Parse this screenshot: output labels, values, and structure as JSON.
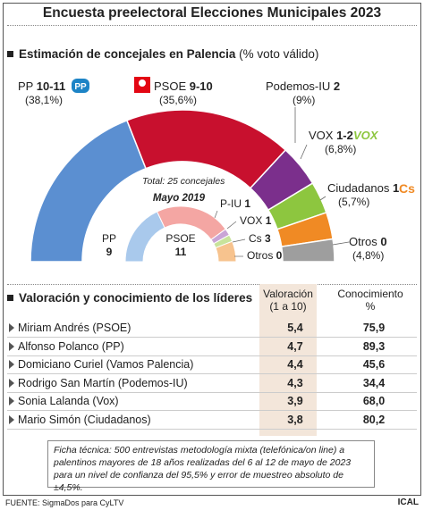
{
  "title": "Encuesta preelectoral Elecciones Municipales 2023",
  "section1": {
    "title": "Estimación de concejales en Palencia",
    "subtitle": "(% voto válido)"
  },
  "chart_data": {
    "type": "semicircle-parliament",
    "total_label": "Total: 25 concejales",
    "estimate": [
      {
        "party": "PP",
        "seats": "10-11",
        "pct": 38.1,
        "pct_label": "(38,1%)",
        "color": "#5b8fd1"
      },
      {
        "party": "PSOE",
        "seats": "9-10",
        "pct": 35.6,
        "pct_label": "(35,6%)",
        "color": "#c8102e"
      },
      {
        "party": "Podemos-IU",
        "seats": "2",
        "pct": 9,
        "pct_label": "(9%)",
        "color": "#7b2f8c"
      },
      {
        "party": "VOX",
        "seats": "1-2",
        "pct": 6.8,
        "pct_label": "(6,8%)",
        "color": "#8dc63f"
      },
      {
        "party": "Ciudadanos",
        "seats": "1",
        "pct": 5.7,
        "pct_label": "(5,7%)",
        "color": "#f08a24"
      },
      {
        "party": "Otros",
        "seats": "0",
        "pct": 4.8,
        "pct_label": "(4,8%)",
        "color": "#9e9e9e"
      }
    ],
    "previous": {
      "title": "Mayo 2019",
      "parties": [
        {
          "party": "PP",
          "seats": 9,
          "color": "#a9c9ec"
        },
        {
          "party": "PSOE",
          "seats": 11,
          "color": "#f4a6a3"
        },
        {
          "party": "P-IU",
          "seats": 1,
          "color": "#c9a4d6"
        },
        {
          "party": "VOX",
          "seats": 1,
          "color": "#c8e39b"
        },
        {
          "party": "Cs",
          "seats": 3,
          "color": "#f7c38e"
        },
        {
          "party": "Otros",
          "seats": 0,
          "color": "#d3d3d3"
        }
      ]
    }
  },
  "section2": {
    "title": "Valoración y conocimiento de los líderes",
    "col1": [
      "Valoración",
      "(1 a 10)"
    ],
    "col2": [
      "Conocimiento",
      "%"
    ],
    "rows": [
      {
        "name": "Miriam Andrés (PSOE)",
        "rating": "5,4",
        "known": "75,9"
      },
      {
        "name": "Alfonso Polanco (PP)",
        "rating": "4,7",
        "known": "89,3"
      },
      {
        "name": "Domiciano Curiel (Vamos Palencia)",
        "rating": "4,4",
        "known": "45,6"
      },
      {
        "name": "Rodrigo San Martín (Podemos-IU)",
        "rating": "4,3",
        "known": "34,4"
      },
      {
        "name": "Sonia Lalanda (Vox)",
        "rating": "3,9",
        "known": "68,0"
      },
      {
        "name": "Mario Simón (Ciudadanos)",
        "rating": "3,8",
        "known": "80,2"
      }
    ]
  },
  "note": "Ficha técnica: 500 entrevistas metodología mixta (telefónica/on line) a palentinos mayores de 18 años realizadas del 6 al 12 de mayo de 2023 para un nivel de confianza del 95,5% y error de muestreo absoluto de ±4,5%.",
  "footer": "FUENTE: SigmaDos para CyLTV",
  "brand": "ICAL",
  "logos": {
    "pp": "PP",
    "psoe": "psoe-rose-icon",
    "vox": "VOX",
    "cs": "Cs"
  }
}
